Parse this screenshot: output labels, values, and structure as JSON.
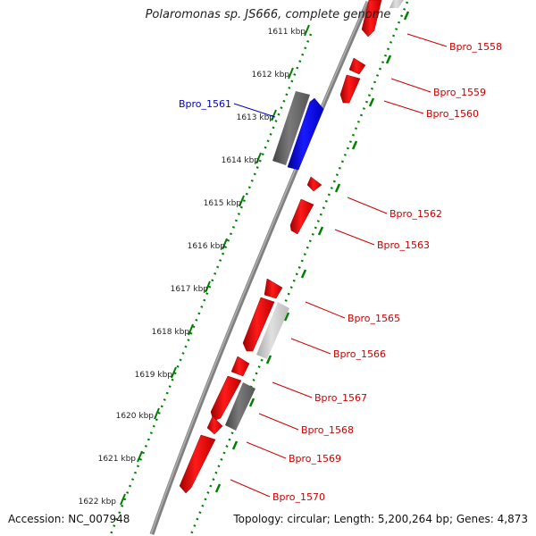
{
  "title": "Polaromonas sp. JS666, complete genome",
  "footer": {
    "accession": "Accession: NC_007948",
    "topology": "Topology: circular; Length: 5,200,264 bp; Genes: 4,873"
  },
  "colors": {
    "forward_gene": "#ff0000",
    "reverse_gene": "#0000ff",
    "gray_gene": "#666666",
    "light_gene": "#cccccc",
    "backbone": "#808080",
    "tick": "#008000",
    "label_forward": "#cc0000",
    "label_reverse": "#0000cc"
  },
  "ruler_ticks": [
    "1611 kbp",
    "1612 kbp",
    "1613 kbp",
    "1614 kbp",
    "1615 kbp",
    "1616 kbp",
    "1617 kbp",
    "1618 kbp",
    "1619 kbp",
    "1620 kbp",
    "1621 kbp",
    "1622 kbp"
  ],
  "gene_labels": [
    {
      "name": "Bpro_1558",
      "color": "#cc0000"
    },
    {
      "name": "Bpro_1559",
      "color": "#cc0000"
    },
    {
      "name": "Bpro_1560",
      "color": "#cc0000"
    },
    {
      "name": "Bpro_1561",
      "color": "#0000cc"
    },
    {
      "name": "Bpro_1562",
      "color": "#cc0000"
    },
    {
      "name": "Bpro_1563",
      "color": "#cc0000"
    },
    {
      "name": "Bpro_1565",
      "color": "#cc0000"
    },
    {
      "name": "Bpro_1566",
      "color": "#cc0000"
    },
    {
      "name": "Bpro_1567",
      "color": "#cc0000"
    },
    {
      "name": "Bpro_1568",
      "color": "#cc0000"
    },
    {
      "name": "Bpro_1569",
      "color": "#cc0000"
    },
    {
      "name": "Bpro_1570",
      "color": "#cc0000"
    }
  ]
}
